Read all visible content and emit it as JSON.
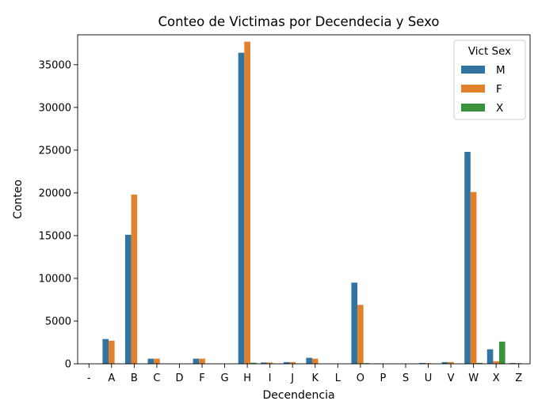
{
  "chart_data": {
    "type": "bar",
    "title": "Conteo de Victimas por Decendecia y Sexo",
    "xlabel": "Decendencia",
    "ylabel": "Conteo",
    "ylim": [
      0,
      38500
    ],
    "yticks": [
      0,
      5000,
      10000,
      15000,
      20000,
      25000,
      30000,
      35000
    ],
    "categories": [
      "-",
      "A",
      "B",
      "C",
      "D",
      "F",
      "G",
      "H",
      "I",
      "J",
      "K",
      "L",
      "O",
      "P",
      "S",
      "U",
      "V",
      "W",
      "X",
      "Z"
    ],
    "legend": {
      "title": "Vict Sex",
      "placement": "top-right"
    },
    "series": [
      {
        "name": "M",
        "color": "#3274a1",
        "values": [
          10,
          2900,
          15100,
          600,
          20,
          600,
          10,
          36400,
          150,
          200,
          700,
          30,
          9500,
          50,
          30,
          100,
          200,
          24800,
          1700,
          100
        ]
      },
      {
        "name": "F",
        "color": "#e1812c",
        "values": [
          5,
          2700,
          19800,
          600,
          15,
          600,
          5,
          37700,
          150,
          200,
          600,
          20,
          6900,
          50,
          20,
          80,
          200,
          20100,
          300,
          80
        ]
      },
      {
        "name": "X",
        "color": "#3a923a",
        "values": [
          0,
          30,
          40,
          5,
          0,
          5,
          0,
          120,
          5,
          5,
          5,
          0,
          80,
          0,
          0,
          5,
          5,
          110,
          2600,
          5
        ]
      }
    ]
  }
}
